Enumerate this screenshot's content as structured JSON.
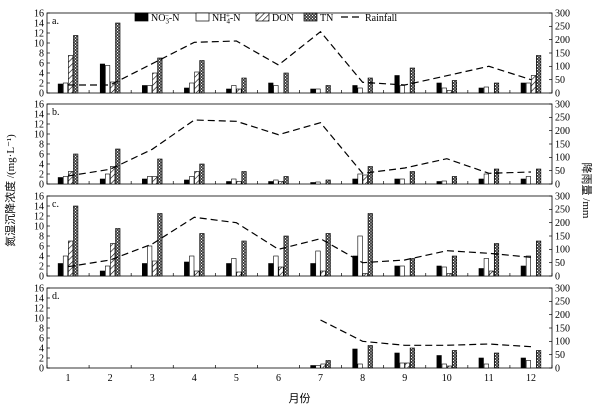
{
  "chart_data": {
    "type": "bar",
    "xlabel": "月份",
    "ylabel_left": "氮湿沉降浓度 /(mg·L⁻¹)",
    "ylabel_right": "降雨量 /mm",
    "categories": [
      "1",
      "2",
      "3",
      "4",
      "5",
      "6",
      "7",
      "8",
      "9",
      "10",
      "11",
      "12"
    ],
    "left_ylim": [
      0,
      16
    ],
    "left_ticks": [
      "0",
      "2",
      "4",
      "6",
      "8",
      "10",
      "12",
      "14",
      "16"
    ],
    "right_ylim": [
      0,
      300
    ],
    "right_ticks": [
      "0",
      "50",
      "100",
      "150",
      "200",
      "250",
      "300"
    ],
    "legend": {
      "no3": {
        "base": "NO",
        "sub": "3",
        "sup": "−",
        "tail": "-N"
      },
      "nh4": {
        "base": "NH",
        "sub": "4",
        "sup": "+",
        "tail": "-N"
      },
      "don": "DON",
      "tn": "TN",
      "rain": "Rainfall"
    },
    "colors": {
      "no3": "#000000",
      "nh4": "#ffffff",
      "don": "#ffffff",
      "tn": "#555555",
      "edge": "#000000"
    },
    "panels": [
      {
        "label": "a.",
        "series": {
          "NO3-N": [
            1.8,
            5.8,
            1.5,
            1.0,
            0.8,
            2.0,
            0.8,
            1.5,
            3.5,
            2.0,
            1.0,
            2.0
          ],
          "NH4-N": [
            2.0,
            5.5,
            1.5,
            2.0,
            1.5,
            1.5,
            0.8,
            1.0,
            1.5,
            1.0,
            1.2,
            2.0
          ],
          "DON": [
            7.5,
            2.2,
            4.0,
            4.2,
            0.8,
            0.0,
            0.0,
            0.0,
            0.0,
            0.5,
            0.0,
            3.5
          ],
          "TN": [
            11.5,
            14.0,
            7.0,
            6.5,
            3.0,
            4.0,
            1.5,
            3.0,
            5.0,
            2.5,
            2.0,
            7.5
          ]
        },
        "rainfall": [
          30,
          30,
          110,
          190,
          195,
          105,
          230,
          40,
          30,
          65,
          100,
          50
        ]
      },
      {
        "label": "b.",
        "series": {
          "NO3-N": [
            1.3,
            1.0,
            1.0,
            0.8,
            0.5,
            0.5,
            0.3,
            1.0,
            1.0,
            0.5,
            1.0,
            1.0
          ],
          "NH4-N": [
            1.5,
            2.0,
            1.5,
            1.5,
            1.0,
            0.8,
            0.4,
            2.0,
            1.0,
            0.6,
            2.0,
            1.5
          ],
          "DON": [
            2.5,
            3.5,
            1.5,
            2.5,
            0.5,
            0.5,
            0.0,
            1.8,
            0.0,
            0.0,
            0.0,
            0.0
          ],
          "TN": [
            6.0,
            7.0,
            5.0,
            4.0,
            2.5,
            1.5,
            0.8,
            3.5,
            2.5,
            1.5,
            3.0,
            3.0
          ]
        },
        "rainfall": [
          30,
          55,
          130,
          240,
          235,
          185,
          230,
          40,
          60,
          95,
          40,
          45
        ]
      },
      {
        "label": "c.",
        "series": {
          "NO3-N": [
            2.5,
            1.0,
            2.5,
            2.8,
            2.5,
            2.5,
            2.5,
            4.0,
            2.0,
            2.0,
            1.5,
            2.0
          ],
          "NH4-N": [
            4.0,
            2.0,
            6.0,
            4.0,
            3.5,
            4.0,
            5.0,
            8.0,
            2.0,
            1.8,
            3.5,
            4.0
          ],
          "DON": [
            7.0,
            6.5,
            3.0,
            1.0,
            0.8,
            1.8,
            1.0,
            0.5,
            0.0,
            0.5,
            1.0,
            0.0
          ],
          "TN": [
            14.0,
            9.5,
            12.5,
            8.5,
            7.0,
            8.0,
            8.5,
            12.5,
            3.5,
            4.0,
            6.5,
            7.0
          ]
        },
        "rainfall": [
          35,
          60,
          120,
          220,
          200,
          100,
          140,
          50,
          60,
          95,
          85,
          70
        ]
      },
      {
        "label": "d.",
        "series": {
          "NO3-N": [
            0,
            0,
            0,
            0,
            0,
            0,
            0.5,
            3.8,
            3.0,
            2.5,
            2.0,
            2.0
          ],
          "NH4-N": [
            0,
            0,
            0,
            0,
            0,
            0,
            0.5,
            0.8,
            1.0,
            0.8,
            0.8,
            1.5
          ],
          "DON": [
            0,
            0,
            0,
            0,
            0,
            0,
            0.8,
            0.0,
            1.0,
            0.4,
            0.0,
            0.0
          ],
          "TN": [
            0,
            0,
            0,
            0,
            0,
            0,
            1.5,
            4.5,
            4.0,
            3.5,
            3.0,
            3.5
          ]
        },
        "rainfall": [
          null,
          null,
          null,
          null,
          null,
          null,
          180,
          100,
          85,
          85,
          90,
          80
        ]
      }
    ]
  }
}
